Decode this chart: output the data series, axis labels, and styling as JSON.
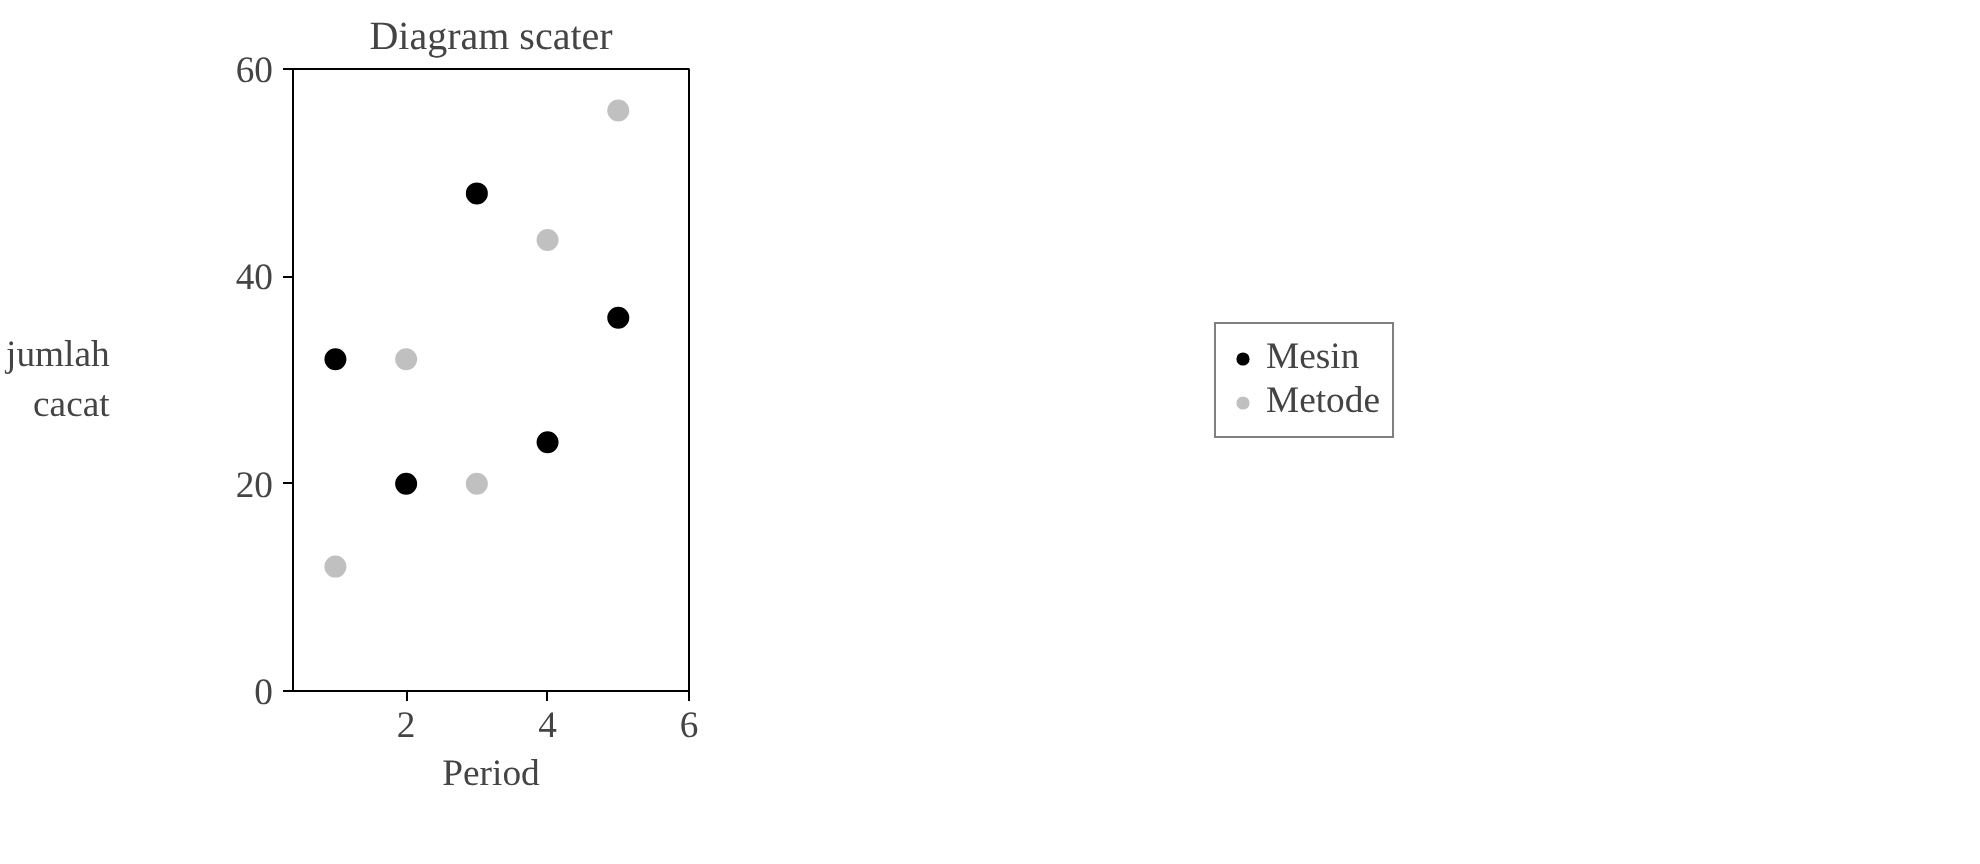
{
  "chart_data": {
    "type": "scatter",
    "title": "Diagram scater",
    "xlabel": "Period",
    "ylabel": "jumlah\ncacat",
    "x": [
      1,
      2,
      3,
      4,
      5
    ],
    "series": [
      {
        "name": "Mesin",
        "color": "#000000",
        "values": [
          32,
          20,
          48,
          24,
          36
        ]
      },
      {
        "name": "Metode",
        "color": "#c0c0c0",
        "values": [
          12,
          32,
          20,
          43.5,
          56
        ]
      }
    ],
    "xlim": [
      0.4,
      6
    ],
    "xticks": [
      2,
      4,
      6
    ],
    "ylim": [
      0,
      60
    ],
    "yticks": [
      0,
      20,
      40,
      60
    ],
    "grid": false,
    "legend": "right",
    "marker": "circle"
  }
}
